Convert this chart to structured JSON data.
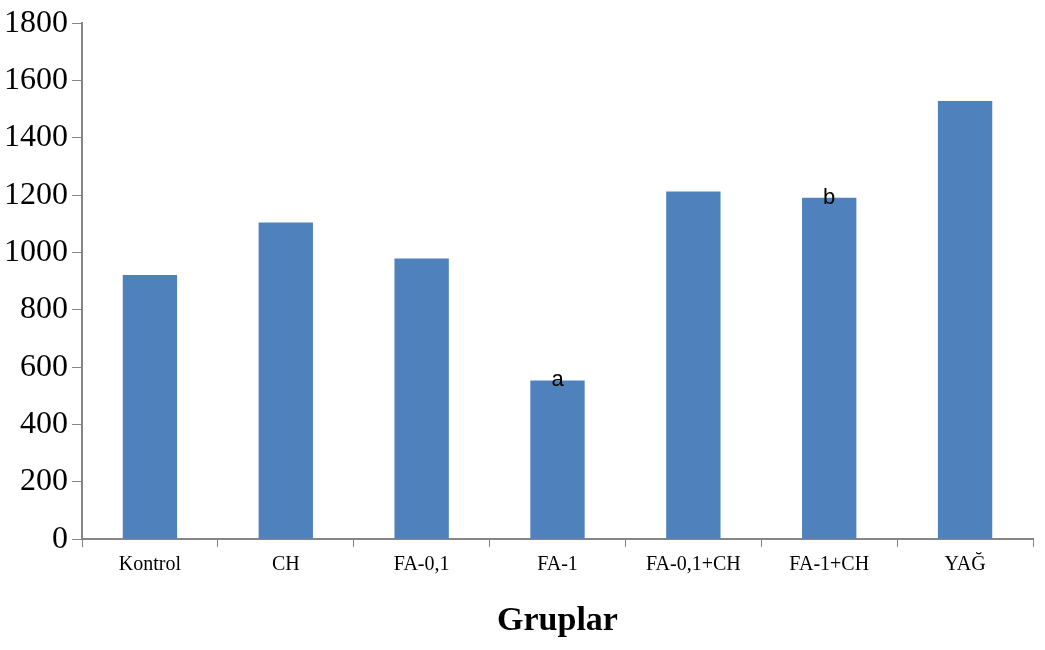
{
  "chart_data": {
    "type": "bar",
    "xlabel": "Gruplar",
    "categories": [
      "Kontrol",
      "CH",
      "FA-0,1",
      "FA-1",
      "FA-0,1+CH",
      "FA-1+CH",
      "YAĞ"
    ],
    "values": [
      922,
      1105,
      979,
      554,
      1213,
      1191,
      1529
    ],
    "color": "#4f81bd",
    "ylim": [
      0,
      1800
    ],
    "yticks": [
      0,
      200,
      400,
      600,
      800,
      1000,
      1200,
      1400,
      1600,
      1800
    ],
    "annotations": [
      {
        "text": "a",
        "x": "FA-1",
        "y": 554
      },
      {
        "text": "b",
        "x": "FA-1+CH",
        "y": 1191
      }
    ]
  }
}
